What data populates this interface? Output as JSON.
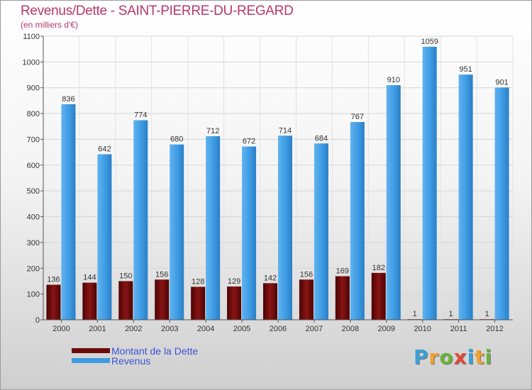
{
  "chart_data": {
    "type": "bar",
    "title": "Revenus/Dette - SAINT-PIERRE-DU-REGARD",
    "subtitle": "(en milliers d'€)",
    "xlabel": "",
    "ylabel": "",
    "ylim": [
      0,
      1100
    ],
    "yticks": [
      0,
      100,
      200,
      300,
      400,
      500,
      600,
      700,
      800,
      900,
      1000,
      1100
    ],
    "grid": true,
    "categories": [
      "2000",
      "2001",
      "2002",
      "2003",
      "2004",
      "2005",
      "2006",
      "2007",
      "2008",
      "2009",
      "2010",
      "2011",
      "2012"
    ],
    "series": [
      {
        "name": "Montant de la Dette",
        "color": "#6b0a0a",
        "values": [
          136,
          144,
          150,
          156,
          128,
          129,
          142,
          156,
          169,
          182,
          1,
          1,
          1
        ],
        "labels": [
          "136",
          "144",
          "150",
          "156",
          "128",
          "129",
          "142",
          "156",
          "169",
          "182",
          "1",
          "1",
          "1"
        ]
      },
      {
        "name": "Revenus",
        "color": "#3e9be3",
        "values": [
          836,
          642,
          774,
          680,
          712,
          672,
          714,
          684,
          767,
          910,
          1059,
          951,
          901
        ],
        "labels": [
          "836",
          "642",
          "774",
          "680",
          "712",
          "672",
          "714",
          "684",
          "767",
          "910",
          "1059",
          "951",
          "901"
        ]
      }
    ]
  },
  "legend": {
    "dette_label": "Montant de la Dette",
    "revenus_label": "Revenus"
  },
  "logo": {
    "letters": [
      "P",
      "r",
      "o",
      "x",
      "i",
      "t",
      "i"
    ],
    "colors": [
      "#3aa0d8",
      "#f0a030",
      "#6bb33d",
      "#e14a3b",
      "#3aa0d8",
      "#f0a030",
      "#6bb33d"
    ]
  }
}
